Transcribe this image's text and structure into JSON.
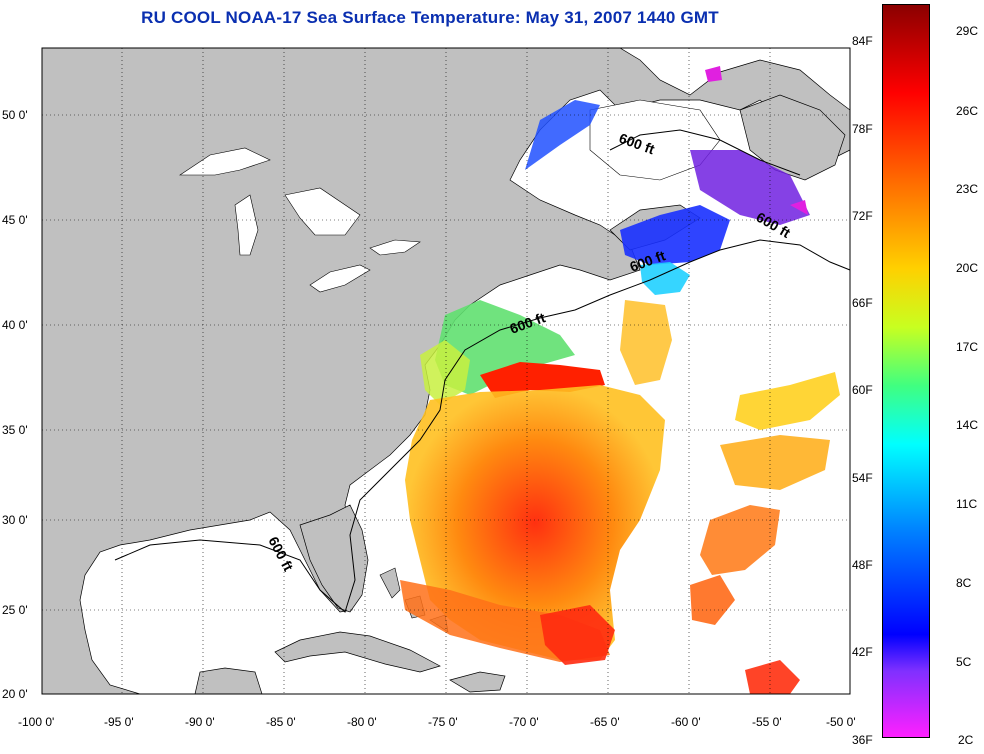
{
  "title": "RU COOL  NOAA-17  Sea Surface Temperature:  May 31, 2007 1440 GMT",
  "lat_ticks": [
    "50 0'",
    "45 0'",
    "40 0'",
    "35 0'",
    "30 0'",
    "25 0'",
    "20 0'"
  ],
  "lon_ticks": [
    "-100 0'",
    "-95 0'",
    "-90 0'",
    "-85 0'",
    "-80 0'",
    "-75 0'",
    "-70 0'",
    "-65 0'",
    "-60 0'",
    "-55 0'",
    "-50 0'"
  ],
  "contour_label": "600 ft",
  "colorbar": {
    "fahrenheit": [
      "84F",
      "78F",
      "72F",
      "66F",
      "60F",
      "54F",
      "48F",
      "42F",
      "36F"
    ],
    "celsius": [
      "29C",
      "26C",
      "23C",
      "20C",
      "17C",
      "14C",
      "11C",
      "8C",
      "5C",
      "2C"
    ]
  },
  "colors": {
    "land": "#c0c0c0",
    "ocean": "#ffffff",
    "title": "#0a2fb0"
  }
}
